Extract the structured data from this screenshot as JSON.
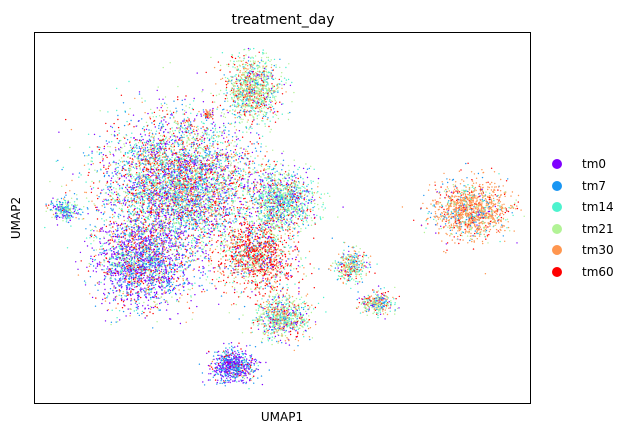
{
  "chart_data": {
    "type": "scatter",
    "title": "treatment_day",
    "xlabel": "UMAP1",
    "ylabel": "UMAP2",
    "xticks": [],
    "yticks": [],
    "grid": false,
    "legend_placement": "right-outside",
    "xlim": [
      0,
      100
    ],
    "ylim": [
      0,
      100
    ],
    "series": [
      {
        "name": "tm0",
        "color": "#7f00ff"
      },
      {
        "name": "tm7",
        "color": "#1996f3"
      },
      {
        "name": "tm14",
        "color": "#4df3ce"
      },
      {
        "name": "tm21",
        "color": "#b2f396"
      },
      {
        "name": "tm30",
        "color": "#ff964f"
      },
      {
        "name": "tm60",
        "color": "#ff0000"
      }
    ],
    "clusters": [
      {
        "cx": 29,
        "cy": 59,
        "rx": 14,
        "ry": 16,
        "n": 5200,
        "mix": [
          0.18,
          0.18,
          0.18,
          0.2,
          0.12,
          0.14
        ]
      },
      {
        "cx": 22,
        "cy": 38,
        "rx": 9,
        "ry": 11,
        "n": 2200,
        "mix": [
          0.35,
          0.25,
          0.1,
          0.1,
          0.08,
          0.12
        ]
      },
      {
        "cx": 45,
        "cy": 40,
        "rx": 7,
        "ry": 9,
        "n": 1400,
        "mix": [
          0.08,
          0.08,
          0.1,
          0.14,
          0.2,
          0.4
        ]
      },
      {
        "cx": 50,
        "cy": 55,
        "rx": 6,
        "ry": 7,
        "n": 1200,
        "mix": [
          0.12,
          0.18,
          0.25,
          0.3,
          0.07,
          0.08
        ]
      },
      {
        "cx": 50,
        "cy": 23,
        "rx": 5,
        "ry": 5,
        "n": 800,
        "mix": [
          0.1,
          0.1,
          0.25,
          0.28,
          0.15,
          0.12
        ]
      },
      {
        "cx": 40,
        "cy": 10,
        "rx": 4,
        "ry": 4,
        "n": 700,
        "mix": [
          0.45,
          0.35,
          0.05,
          0.05,
          0.03,
          0.07
        ]
      },
      {
        "cx": 44,
        "cy": 85,
        "rx": 5,
        "ry": 8,
        "n": 1100,
        "mix": [
          0.05,
          0.08,
          0.2,
          0.4,
          0.15,
          0.12
        ]
      },
      {
        "cx": 88,
        "cy": 52,
        "rx": 7,
        "ry": 7,
        "n": 1300,
        "mix": [
          0.03,
          0.1,
          0.06,
          0.08,
          0.63,
          0.1
        ]
      },
      {
        "cx": 64,
        "cy": 37,
        "rx": 3,
        "ry": 4,
        "n": 350,
        "mix": [
          0.08,
          0.12,
          0.22,
          0.3,
          0.18,
          0.1
        ]
      },
      {
        "cx": 69,
        "cy": 27,
        "rx": 3,
        "ry": 3,
        "n": 300,
        "mix": [
          0.08,
          0.12,
          0.22,
          0.3,
          0.18,
          0.1
        ]
      },
      {
        "cx": 6,
        "cy": 52,
        "rx": 3,
        "ry": 3,
        "n": 250,
        "mix": [
          0.2,
          0.3,
          0.25,
          0.15,
          0.05,
          0.05
        ]
      },
      {
        "cx": 35,
        "cy": 78,
        "rx": 0.8,
        "ry": 1,
        "n": 60,
        "mix": [
          0.05,
          0.05,
          0.1,
          0.1,
          0.4,
          0.3
        ]
      }
    ]
  }
}
